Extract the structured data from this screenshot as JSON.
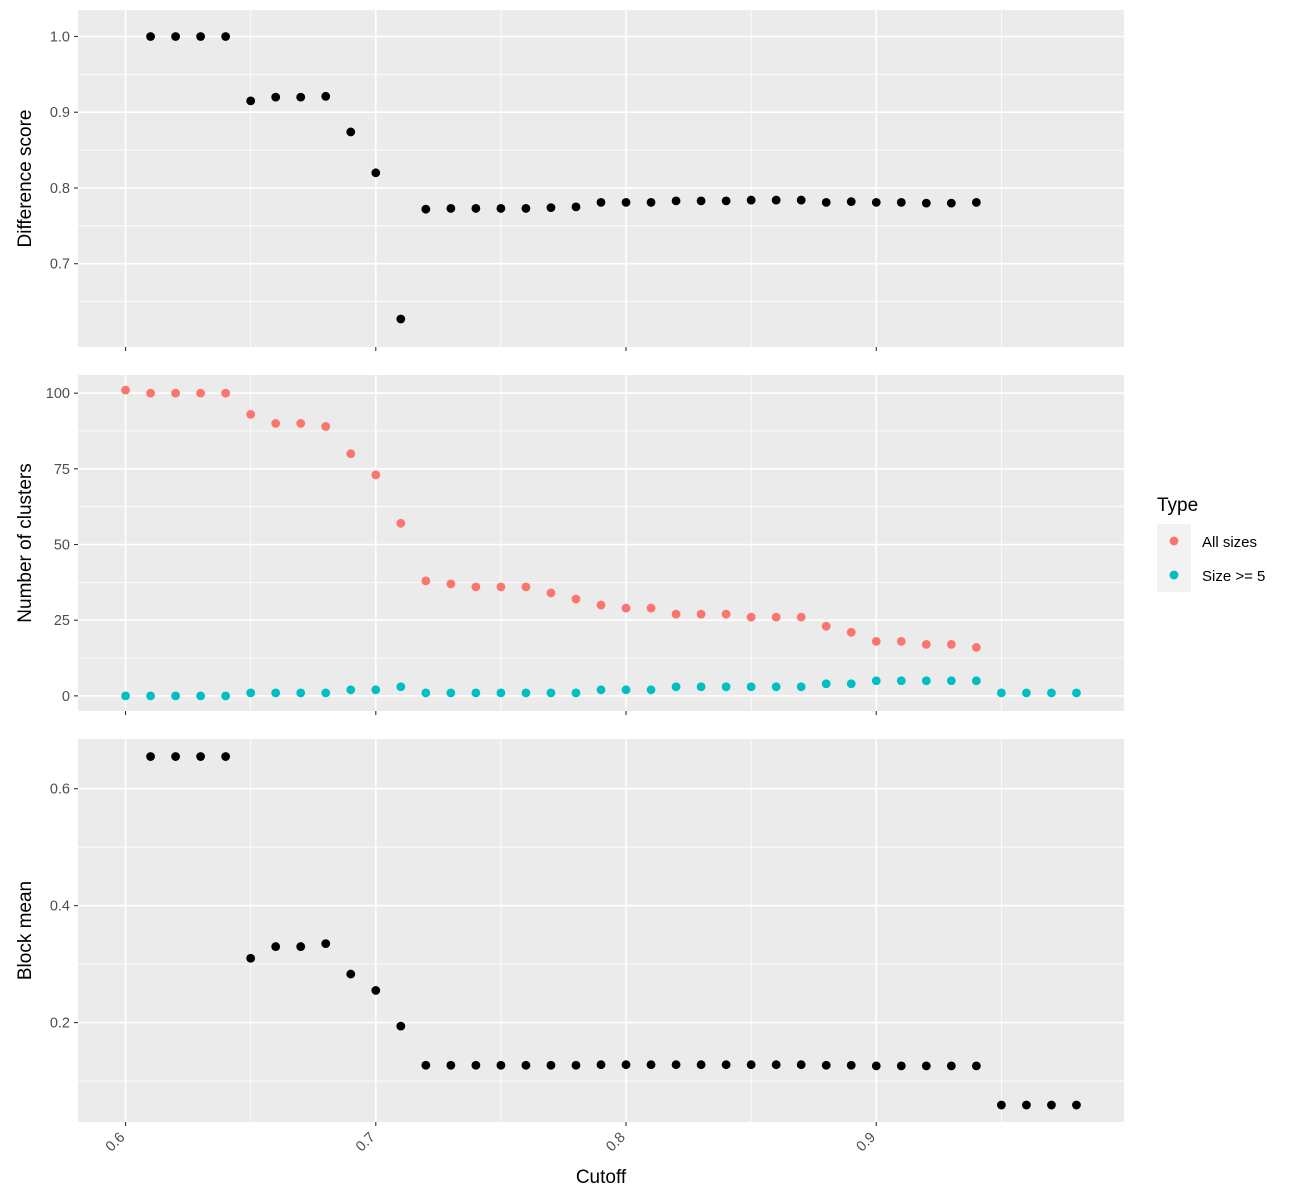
{
  "chart_data": {
    "type": "scatter",
    "xlabel": "Cutoff",
    "xlim": [
      0.581,
      0.999
    ],
    "x_ticks": [
      0.6,
      0.7,
      0.8,
      0.9
    ],
    "x_tick_labels": [
      "0.6",
      "0.7",
      "0.8",
      "0.9"
    ],
    "panels": [
      {
        "id": "difference-score",
        "ylabel": "Difference score",
        "ylim": [
          0.59,
          1.035
        ],
        "y_ticks": [
          0.7,
          0.8,
          0.9,
          1.0
        ],
        "y_tick_labels": [
          "0.7",
          "0.8",
          "0.9",
          "1.0"
        ],
        "series": [
          {
            "name": "Difference score",
            "color": "#000000",
            "points": [
              [
                0.61,
                1.0
              ],
              [
                0.62,
                1.0
              ],
              [
                0.63,
                1.0
              ],
              [
                0.64,
                1.0
              ],
              [
                0.65,
                0.915
              ],
              [
                0.66,
                0.92
              ],
              [
                0.67,
                0.92
              ],
              [
                0.68,
                0.921
              ],
              [
                0.69,
                0.874
              ],
              [
                0.7,
                0.82
              ],
              [
                0.71,
                0.627
              ],
              [
                0.72,
                0.772
              ],
              [
                0.73,
                0.773
              ],
              [
                0.74,
                0.773
              ],
              [
                0.75,
                0.773
              ],
              [
                0.76,
                0.773
              ],
              [
                0.77,
                0.774
              ],
              [
                0.78,
                0.775
              ],
              [
                0.79,
                0.781
              ],
              [
                0.8,
                0.781
              ],
              [
                0.81,
                0.781
              ],
              [
                0.82,
                0.783
              ],
              [
                0.83,
                0.783
              ],
              [
                0.84,
                0.783
              ],
              [
                0.85,
                0.784
              ],
              [
                0.86,
                0.784
              ],
              [
                0.87,
                0.784
              ],
              [
                0.88,
                0.781
              ],
              [
                0.89,
                0.782
              ],
              [
                0.9,
                0.781
              ],
              [
                0.91,
                0.781
              ],
              [
                0.92,
                0.78
              ],
              [
                0.93,
                0.78
              ],
              [
                0.94,
                0.781
              ]
            ]
          }
        ]
      },
      {
        "id": "number-of-clusters",
        "ylabel": "Number of clusters",
        "ylim": [
          -5,
          106
        ],
        "y_ticks": [
          0,
          25,
          50,
          75,
          100
        ],
        "y_tick_labels": [
          "0",
          "25",
          "50",
          "75",
          "100"
        ],
        "series": [
          {
            "name": "All sizes",
            "color": "#F8766D",
            "points": [
              [
                0.6,
                101
              ],
              [
                0.61,
                100
              ],
              [
                0.62,
                100
              ],
              [
                0.63,
                100
              ],
              [
                0.64,
                100
              ],
              [
                0.65,
                93
              ],
              [
                0.66,
                90
              ],
              [
                0.67,
                90
              ],
              [
                0.68,
                89
              ],
              [
                0.69,
                80
              ],
              [
                0.7,
                73
              ],
              [
                0.71,
                57
              ],
              [
                0.72,
                38
              ],
              [
                0.73,
                37
              ],
              [
                0.74,
                36
              ],
              [
                0.75,
                36
              ],
              [
                0.76,
                36
              ],
              [
                0.77,
                34
              ],
              [
                0.78,
                32
              ],
              [
                0.79,
                30
              ],
              [
                0.8,
                29
              ],
              [
                0.81,
                29
              ],
              [
                0.82,
                27
              ],
              [
                0.83,
                27
              ],
              [
                0.84,
                27
              ],
              [
                0.85,
                26
              ],
              [
                0.86,
                26
              ],
              [
                0.87,
                26
              ],
              [
                0.88,
                23
              ],
              [
                0.89,
                21
              ],
              [
                0.9,
                18
              ],
              [
                0.91,
                18
              ],
              [
                0.92,
                17
              ],
              [
                0.93,
                17
              ],
              [
                0.94,
                16
              ]
            ]
          },
          {
            "name": "Size >= 5",
            "color": "#00BFC4",
            "points": [
              [
                0.6,
                0
              ],
              [
                0.61,
                0
              ],
              [
                0.62,
                0
              ],
              [
                0.63,
                0
              ],
              [
                0.64,
                0
              ],
              [
                0.65,
                1
              ],
              [
                0.66,
                1
              ],
              [
                0.67,
                1
              ],
              [
                0.68,
                1
              ],
              [
                0.69,
                2
              ],
              [
                0.7,
                2
              ],
              [
                0.71,
                3
              ],
              [
                0.72,
                1
              ],
              [
                0.73,
                1
              ],
              [
                0.74,
                1
              ],
              [
                0.75,
                1
              ],
              [
                0.76,
                1
              ],
              [
                0.77,
                1
              ],
              [
                0.78,
                1
              ],
              [
                0.79,
                2
              ],
              [
                0.8,
                2
              ],
              [
                0.81,
                2
              ],
              [
                0.82,
                3
              ],
              [
                0.83,
                3
              ],
              [
                0.84,
                3
              ],
              [
                0.85,
                3
              ],
              [
                0.86,
                3
              ],
              [
                0.87,
                3
              ],
              [
                0.88,
                4
              ],
              [
                0.89,
                4
              ],
              [
                0.9,
                5
              ],
              [
                0.91,
                5
              ],
              [
                0.92,
                5
              ],
              [
                0.93,
                5
              ],
              [
                0.94,
                5
              ],
              [
                0.95,
                1
              ],
              [
                0.96,
                1
              ],
              [
                0.97,
                1
              ],
              [
                0.98,
                1
              ]
            ]
          }
        ]
      },
      {
        "id": "block-mean",
        "ylabel": "Block mean",
        "ylim": [
          0.03,
          0.685
        ],
        "y_ticks": [
          0.2,
          0.4,
          0.6
        ],
        "y_tick_labels": [
          "0.2",
          "0.4",
          "0.6"
        ],
        "series": [
          {
            "name": "Block mean",
            "color": "#000000",
            "points": [
              [
                0.61,
                0.655
              ],
              [
                0.62,
                0.655
              ],
              [
                0.63,
                0.655
              ],
              [
                0.64,
                0.655
              ],
              [
                0.65,
                0.31
              ],
              [
                0.66,
                0.33
              ],
              [
                0.67,
                0.33
              ],
              [
                0.68,
                0.335
              ],
              [
                0.69,
                0.283
              ],
              [
                0.7,
                0.255
              ],
              [
                0.71,
                0.194
              ],
              [
                0.72,
                0.127
              ],
              [
                0.73,
                0.127
              ],
              [
                0.74,
                0.127
              ],
              [
                0.75,
                0.127
              ],
              [
                0.76,
                0.127
              ],
              [
                0.77,
                0.127
              ],
              [
                0.78,
                0.127
              ],
              [
                0.79,
                0.128
              ],
              [
                0.8,
                0.128
              ],
              [
                0.81,
                0.128
              ],
              [
                0.82,
                0.128
              ],
              [
                0.83,
                0.128
              ],
              [
                0.84,
                0.128
              ],
              [
                0.85,
                0.128
              ],
              [
                0.86,
                0.128
              ],
              [
                0.87,
                0.128
              ],
              [
                0.88,
                0.127
              ],
              [
                0.89,
                0.127
              ],
              [
                0.9,
                0.126
              ],
              [
                0.91,
                0.126
              ],
              [
                0.92,
                0.126
              ],
              [
                0.93,
                0.126
              ],
              [
                0.94,
                0.126
              ],
              [
                0.95,
                0.059
              ],
              [
                0.96,
                0.059
              ],
              [
                0.97,
                0.059
              ],
              [
                0.98,
                0.059
              ]
            ]
          }
        ]
      }
    ],
    "legend": {
      "title": "Type",
      "position": "right",
      "entries": [
        {
          "label": "All sizes",
          "color": "#F8766D"
        },
        {
          "label": "Size >= 5",
          "color": "#00BFC4"
        }
      ]
    }
  }
}
